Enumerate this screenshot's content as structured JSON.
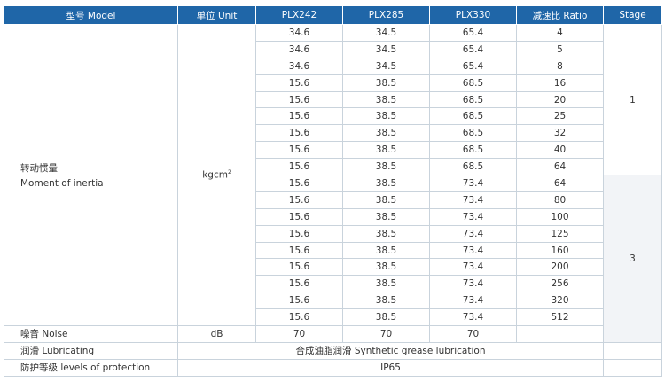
{
  "headers": {
    "model": "型号 Model",
    "unit": "单位 Unit",
    "col1": "PLX242",
    "col2": "PLX285",
    "col3": "PLX330",
    "ratio": "减速比 Ratio",
    "stage": "Stage"
  },
  "inertia": {
    "label_cn": "转动惯量",
    "label_en": "Moment of inertia",
    "unit_base": "kgcm",
    "unit_sup": "2",
    "stage1": "1",
    "stage3": "3",
    "rows": [
      {
        "a": "34.6",
        "b": "34.5",
        "c": "65.4",
        "ratio": "4"
      },
      {
        "a": "34.6",
        "b": "34.5",
        "c": "65.4",
        "ratio": "5"
      },
      {
        "a": "34.6",
        "b": "34.5",
        "c": "65.4",
        "ratio": "8"
      },
      {
        "a": "15.6",
        "b": "38.5",
        "c": "68.5",
        "ratio": "16"
      },
      {
        "a": "15.6",
        "b": "38.5",
        "c": "68.5",
        "ratio": "20"
      },
      {
        "a": "15.6",
        "b": "38.5",
        "c": "68.5",
        "ratio": "25"
      },
      {
        "a": "15.6",
        "b": "38.5",
        "c": "68.5",
        "ratio": "32"
      },
      {
        "a": "15.6",
        "b": "38.5",
        "c": "68.5",
        "ratio": "40"
      },
      {
        "a": "15.6",
        "b": "38.5",
        "c": "68.5",
        "ratio": "64"
      },
      {
        "a": "15.6",
        "b": "38.5",
        "c": "73.4",
        "ratio": "64"
      },
      {
        "a": "15.6",
        "b": "38.5",
        "c": "73.4",
        "ratio": "80"
      },
      {
        "a": "15.6",
        "b": "38.5",
        "c": "73.4",
        "ratio": "100"
      },
      {
        "a": "15.6",
        "b": "38.5",
        "c": "73.4",
        "ratio": "125"
      },
      {
        "a": "15.6",
        "b": "38.5",
        "c": "73.4",
        "ratio": "160"
      },
      {
        "a": "15.6",
        "b": "38.5",
        "c": "73.4",
        "ratio": "200"
      },
      {
        "a": "15.6",
        "b": "38.5",
        "c": "73.4",
        "ratio": "256"
      },
      {
        "a": "15.6",
        "b": "38.5",
        "c": "73.4",
        "ratio": "320"
      },
      {
        "a": "15.6",
        "b": "38.5",
        "c": "73.4",
        "ratio": "512"
      }
    ]
  },
  "noise": {
    "label": "噪音 Noise",
    "unit": "dB",
    "a": "70",
    "b": "70",
    "c": "70"
  },
  "lubricating": {
    "label": "润滑 Lubricating",
    "value": "合成油脂润滑 Synthetic grease lubrication"
  },
  "protection": {
    "label": "防护等级 levels of protection",
    "value": "IP65"
  }
}
